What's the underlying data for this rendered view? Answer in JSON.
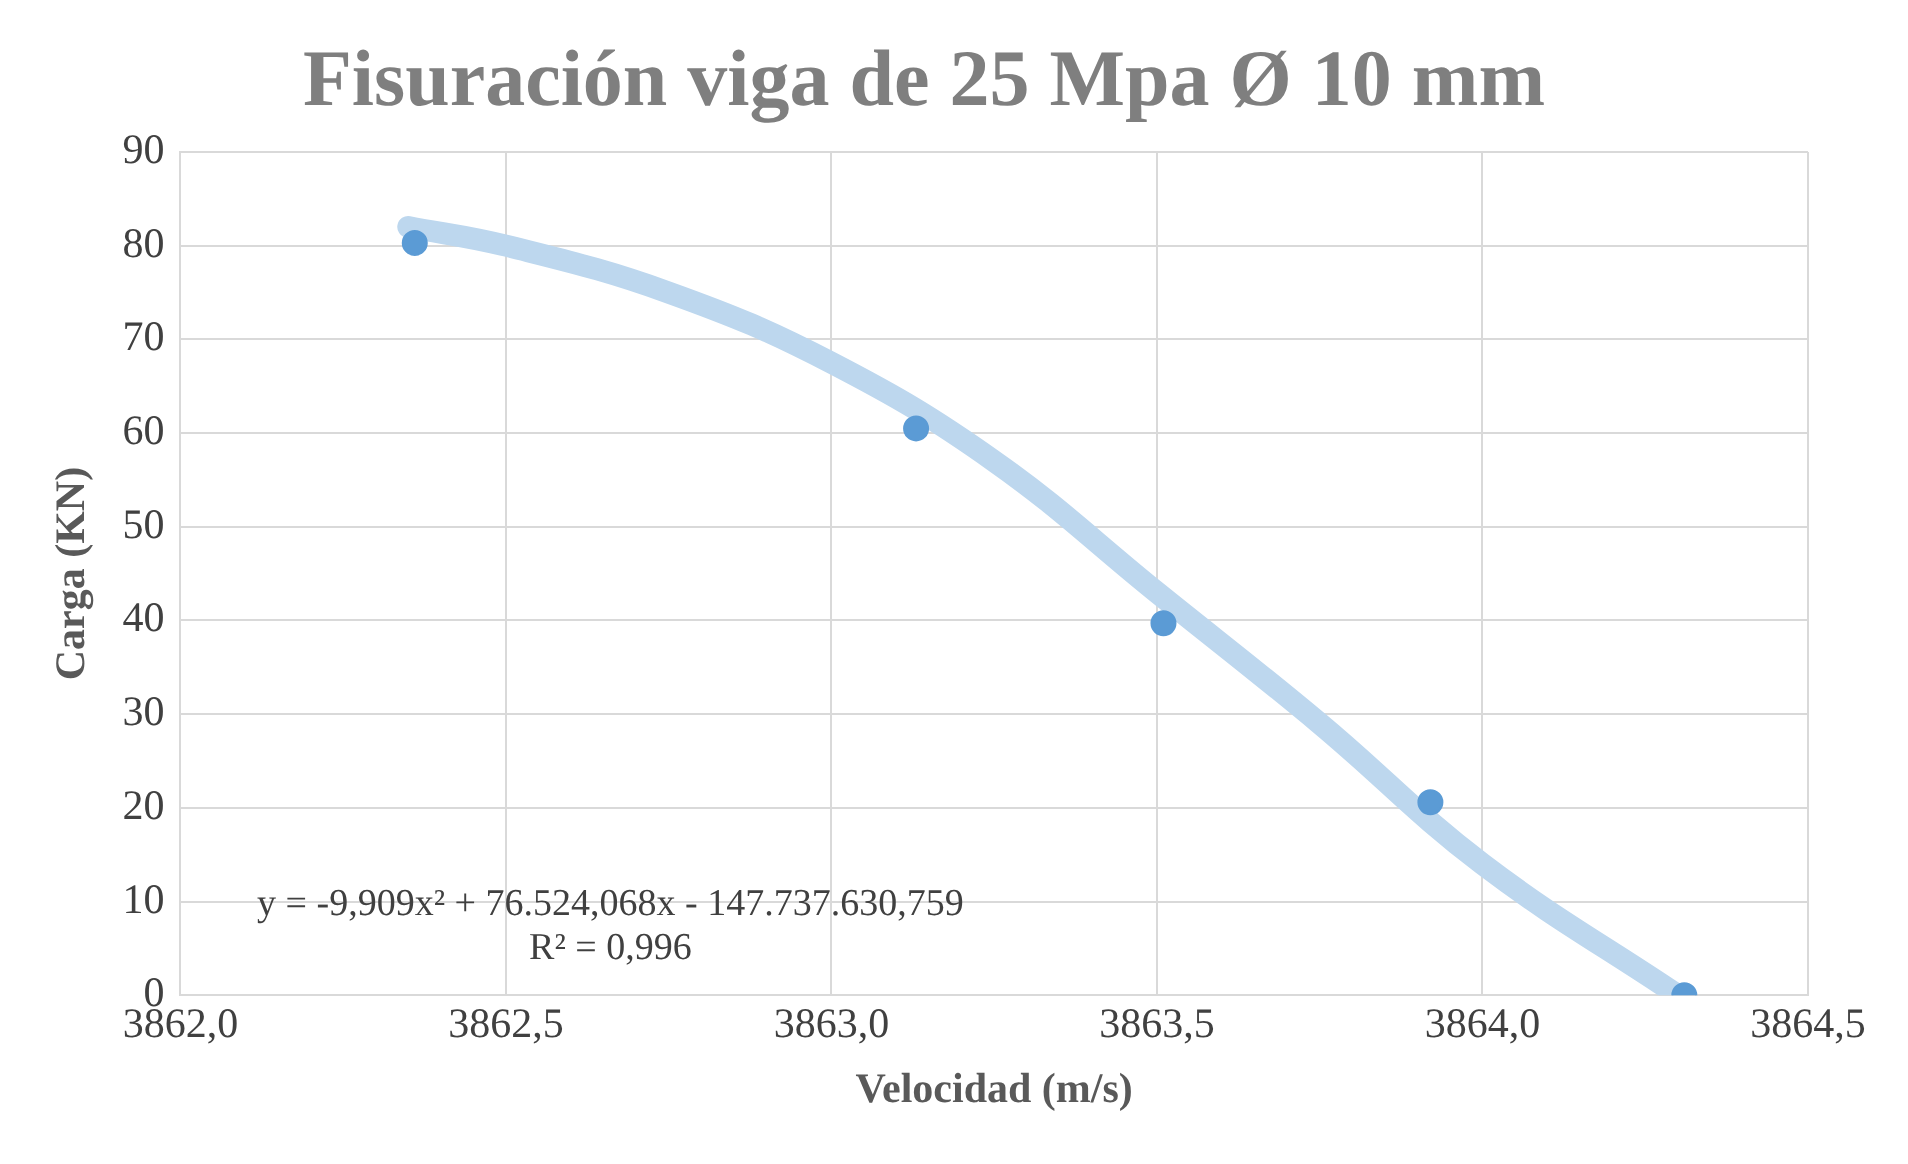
{
  "chart_data": {
    "type": "scatter",
    "title": "Fisuración viga de 25 Mpa Ø 10 mm",
    "xlabel": "Velocidad (m/s)",
    "ylabel": "Carga (KN)",
    "x": [
      3862.36,
      3863.13,
      3863.51,
      3863.92,
      3864.31
    ],
    "series": [
      {
        "color": "#5b9bd5",
        "values": [
          80.3,
          60.5,
          39.7,
          20.6,
          0
        ]
      },
      {
        "type": "line",
        "color": "#bdd7ee",
        "x": [
          3862.35,
          3862.5,
          3862.75,
          3863.0,
          3863.25,
          3863.5,
          3863.75,
          3864.0,
          3864.3
        ],
        "values": [
          82,
          80,
          75,
          67.5,
          57,
          43,
          29,
          14,
          0
        ],
        "marker": "none"
      }
    ],
    "xlim": [
      3862.0,
      3864.5
    ],
    "xticks": [
      {
        "value": 3862.0,
        "label": "3862,0"
      },
      {
        "value": 3862.5,
        "label": "3862,5"
      },
      {
        "value": 3863.0,
        "label": "3863,0"
      },
      {
        "value": 3863.5,
        "label": "3863,5"
      },
      {
        "value": 3864.0,
        "label": "3864,0"
      },
      {
        "value": 3864.5,
        "label": "3864,5"
      }
    ],
    "ylim": [
      0,
      90
    ],
    "yticks": [
      0,
      10,
      20,
      30,
      40,
      50,
      60,
      70,
      80,
      90
    ],
    "grid": true,
    "legend": false,
    "marker": "circle",
    "annotations": [
      "y = -9,909x² + 76.524,068x - 147.737.630,759",
      "R² = 0,996"
    ]
  }
}
